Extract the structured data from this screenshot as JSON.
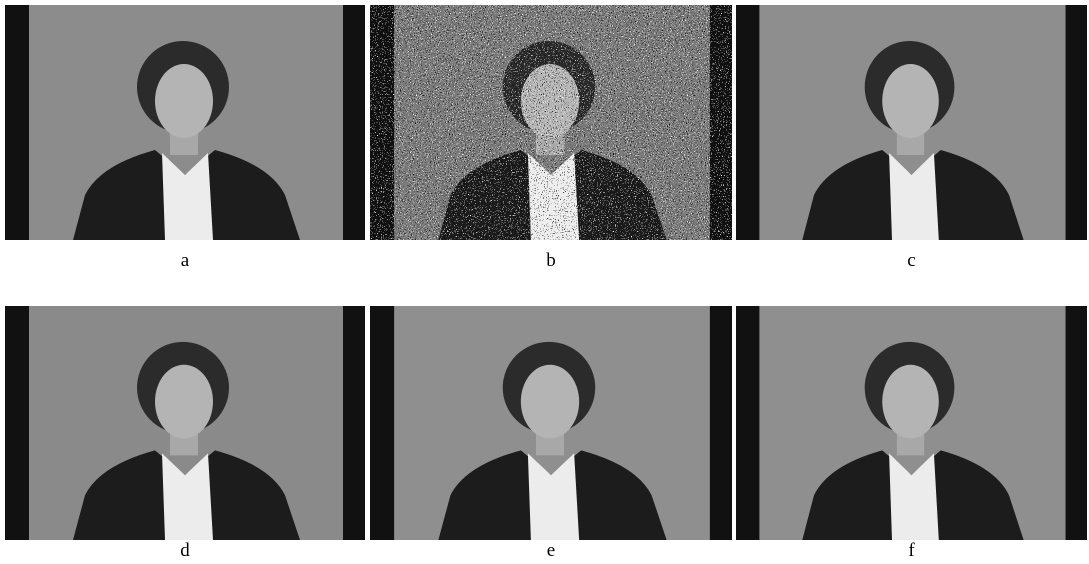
{
  "figure": {
    "panels": [
      {
        "label": "a"
      },
      {
        "label": "b"
      },
      {
        "label": "c"
      },
      {
        "label": "d"
      },
      {
        "label": "e"
      },
      {
        "label": "f"
      }
    ]
  }
}
